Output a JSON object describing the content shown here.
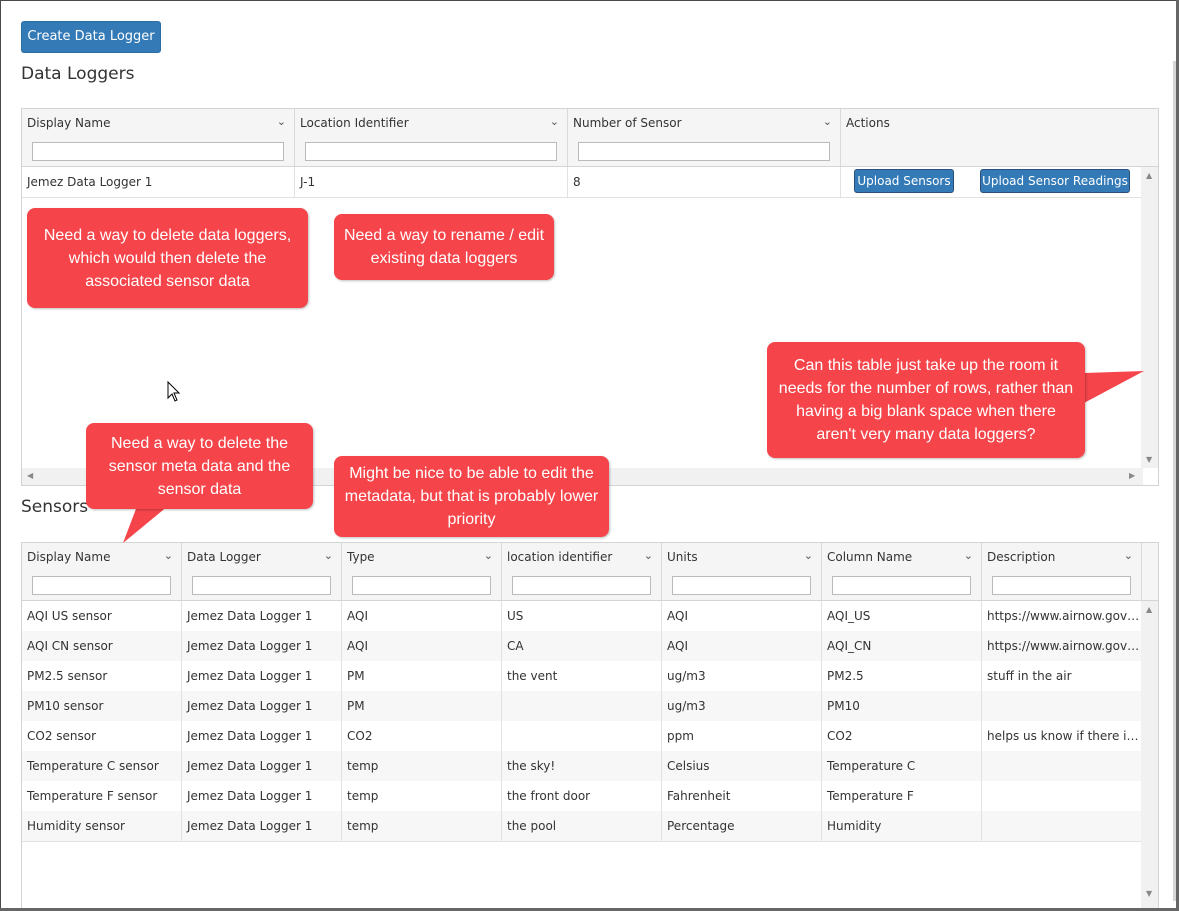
{
  "create_button": "Create Data Logger",
  "data_loggers": {
    "title": "Data Loggers",
    "columns": [
      "Display Name",
      "Location Identifier",
      "Number of Sensor",
      "Actions"
    ],
    "rows": [
      {
        "display_name": "Jemez Data Logger 1",
        "location": "J-1",
        "num_sensors": "8",
        "upload_sensors": "Upload Sensors",
        "upload_readings": "Upload Sensor Readings"
      }
    ]
  },
  "sensors": {
    "title": "Sensors",
    "columns": [
      "Display Name",
      "Data Logger",
      "Type",
      "location identifier",
      "Units",
      "Column Name",
      "Description"
    ],
    "rows": [
      [
        "AQI US sensor",
        "Jemez Data Logger 1",
        "AQI",
        "US",
        "AQI",
        "AQI_US",
        "https://www.airnow.gov/..."
      ],
      [
        "AQI CN sensor",
        "Jemez Data Logger 1",
        "AQI",
        "CA",
        "AQI",
        "AQI_CN",
        "https://www.airnow.gov/..."
      ],
      [
        "PM2.5 sensor",
        "Jemez Data Logger 1",
        "PM",
        "the vent",
        "ug/m3",
        "PM2.5",
        "stuff in the air"
      ],
      [
        "PM10 sensor",
        "Jemez Data Logger 1",
        "PM",
        "",
        "ug/m3",
        "PM10",
        ""
      ],
      [
        "CO2 sensor",
        "Jemez Data Logger 1",
        "CO2",
        "",
        "ppm",
        "CO2",
        "helps us know if there is ..."
      ],
      [
        "Temperature C sensor",
        "Jemez Data Logger 1",
        "temp",
        "the sky!",
        "Celsius",
        "Temperature C",
        ""
      ],
      [
        "Temperature F sensor",
        "Jemez Data Logger 1",
        "temp",
        "the front door",
        "Fahrenheit",
        "Temperature F",
        ""
      ],
      [
        "Humidity sensor",
        "Jemez Data Logger 1",
        "temp",
        "the pool",
        "Percentage",
        "Humidity",
        ""
      ]
    ]
  },
  "callouts": {
    "delete_loggers": "Need a way to delete data loggers, which would then delete the associated sensor data",
    "rename_loggers": "Need a way to rename / edit existing data loggers",
    "table_size": "Can this table just take up the room it needs for the number of rows, rather than having a big blank space when there aren't very many data loggers?",
    "delete_sensors": "Need a way to delete the sensor meta data and the sensor data",
    "edit_metadata": "Might be nice to be able to edit the metadata, but that is probably lower priority"
  },
  "colors": {
    "accent": "#337ab7",
    "callout": "#f5454a"
  },
  "icons": {
    "column_menu": "chevron-down-icon",
    "cursor": "mouse-pointer-icon"
  }
}
